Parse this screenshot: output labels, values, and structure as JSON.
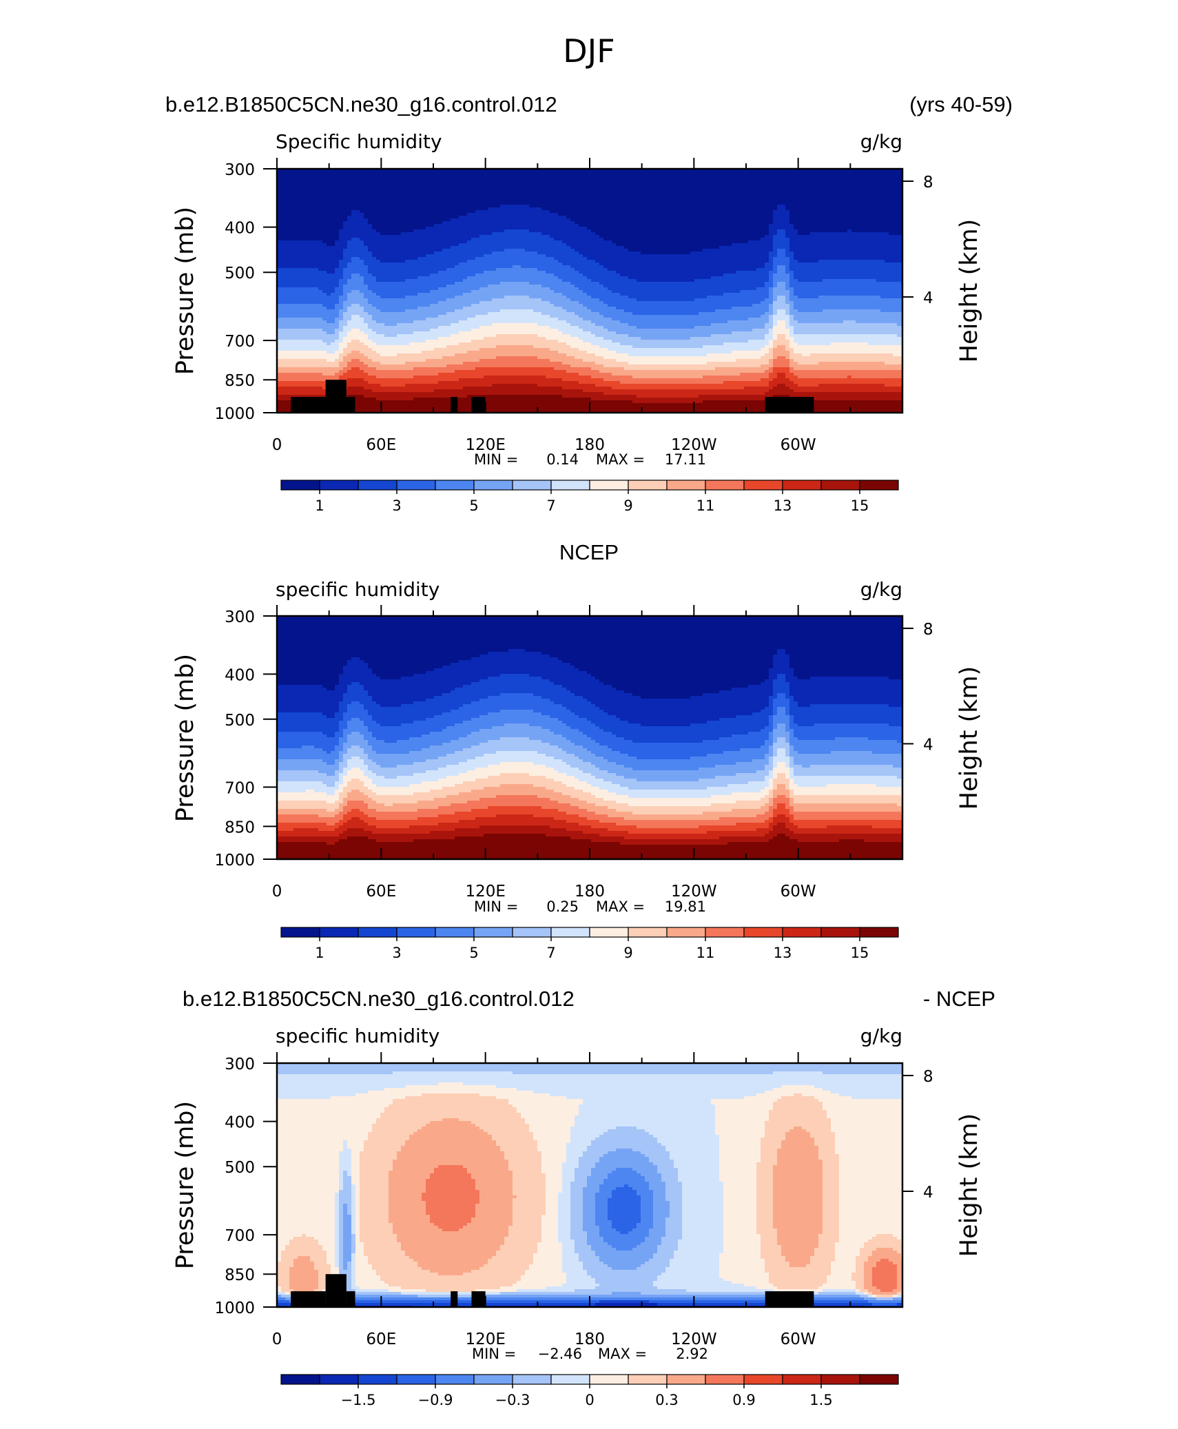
{
  "figure": {
    "title": "DJF"
  },
  "colors": {
    "scale": [
      "#04148c",
      "#0a28b4",
      "#1446d2",
      "#2b64e6",
      "#4d86f0",
      "#76a4f5",
      "#a5c4f8",
      "#d2e4fb",
      "#fdeee2",
      "#fccfb6",
      "#f9a98a",
      "#f4775b",
      "#e8472b",
      "#cc2716",
      "#a8140c",
      "#7a0503"
    ],
    "land": "#000000"
  },
  "colorbars": [
    {
      "labels": [
        "1",
        "3",
        "5",
        "7",
        "9",
        "11",
        "13",
        "15"
      ]
    },
    {
      "labels": [
        "1",
        "3",
        "5",
        "7",
        "9",
        "11",
        "13",
        "15"
      ]
    },
    {
      "labels": [
        "−1.5",
        "−0.9",
        "−0.3",
        "0",
        "0.3",
        "0.9",
        "1.5"
      ]
    }
  ],
  "chart_data": [
    {
      "type": "heatmap",
      "header_left": "b.e12.B1850C5CN.ne30_g16.control.012",
      "header_right": "(yrs 40-59)",
      "title": "Specific humidity",
      "units": "g/kg",
      "ylabel": "Pressure (mb)",
      "ylabel_right": "Height (km)",
      "x_ticks": [
        "0",
        "60E",
        "120E",
        "180",
        "120W",
        "60W"
      ],
      "y_ticks": [
        "300",
        "400",
        "500",
        "700",
        "850",
        "1000"
      ],
      "y_right_ticks": [
        "8",
        "4"
      ],
      "min_label": "MIN =",
      "min": "0.14",
      "max_label": "MAX =",
      "max": "17.11",
      "levels": [
        1,
        2,
        3,
        4,
        5,
        6,
        7,
        8,
        9,
        10,
        11,
        12,
        13,
        14,
        15
      ],
      "shows_topography": true
    },
    {
      "type": "heatmap",
      "header_left": "NCEP",
      "title": "specific humidity",
      "units": "g/kg",
      "ylabel": "Pressure (mb)",
      "ylabel_right": "Height (km)",
      "x_ticks": [
        "0",
        "60E",
        "120E",
        "180",
        "120W",
        "60W"
      ],
      "y_ticks": [
        "300",
        "400",
        "500",
        "700",
        "850",
        "1000"
      ],
      "y_right_ticks": [
        "8",
        "4"
      ],
      "min_label": "MIN =",
      "min": "0.25",
      "max_label": "MAX =",
      "max": "19.81",
      "levels": [
        1,
        2,
        3,
        4,
        5,
        6,
        7,
        8,
        9,
        10,
        11,
        12,
        13,
        14,
        15
      ],
      "shows_topography": false
    },
    {
      "type": "heatmap",
      "header_left": "b.e12.B1850C5CN.ne30_g16.control.012",
      "header_right": "- NCEP",
      "title": "specific humidity",
      "units": "g/kg",
      "ylabel": "Pressure (mb)",
      "ylabel_right": "Height (km)",
      "x_ticks": [
        "0",
        "60E",
        "120E",
        "180",
        "120W",
        "60W"
      ],
      "y_ticks": [
        "300",
        "400",
        "500",
        "700",
        "850",
        "1000"
      ],
      "y_right_ticks": [
        "8",
        "4"
      ],
      "min_label": "MIN =",
      "min": "−2.46",
      "max_label": "MAX =",
      "max": "2.92",
      "levels": [
        -1.8,
        -1.5,
        -1.2,
        -0.9,
        -0.6,
        -0.3,
        -0.1,
        0,
        0.1,
        0.3,
        0.6,
        0.9,
        1.2,
        1.5,
        1.8
      ],
      "shows_topography": true
    }
  ]
}
